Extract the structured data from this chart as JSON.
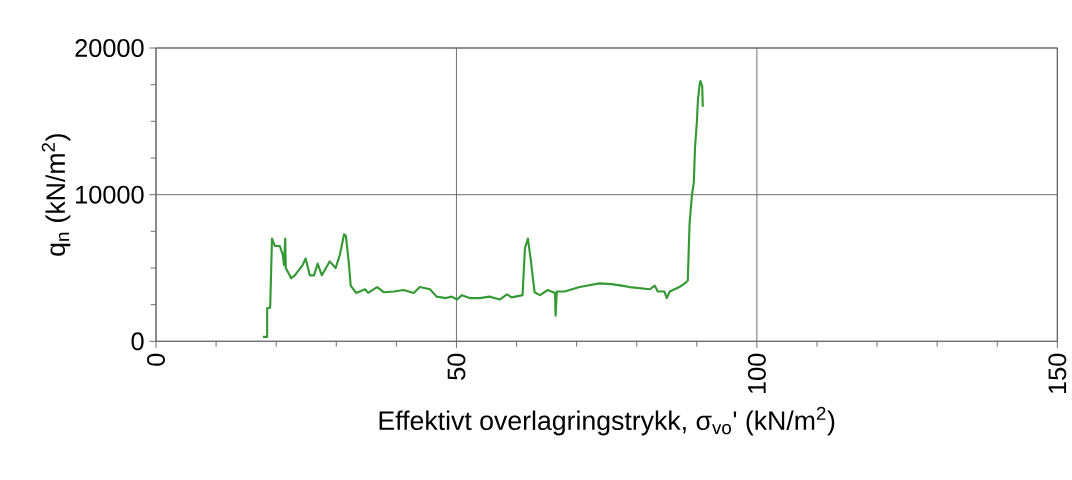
{
  "chart_data": {
    "type": "line",
    "xlabel": "Effektivt overlagringstrykk, σ$_{vo}$' (kN/m$^{2}$)",
    "ylabel": "q$_{n}$ (kN/m$^{2}$)",
    "xlim": [
      0,
      150
    ],
    "ylim": [
      0,
      20000
    ],
    "xticks": [
      0,
      {
        "value": 10,
        "label": null
      },
      {
        "value": 20,
        "label": null
      },
      {
        "value": 30,
        "label": null
      },
      {
        "value": 40,
        "label": null
      },
      50,
      {
        "value": 60,
        "label": null
      },
      {
        "value": 70,
        "label": null
      },
      {
        "value": 80,
        "label": null
      },
      {
        "value": 90,
        "label": null
      },
      100,
      {
        "value": 110,
        "label": null
      },
      {
        "value": 120,
        "label": null
      },
      {
        "value": 130,
        "label": null
      },
      {
        "value": 140,
        "label": null
      },
      150
    ],
    "yticks": [
      0,
      {
        "value": 2500,
        "label": null
      },
      {
        "value": 5000,
        "label": null
      },
      {
        "value": 7500,
        "label": null
      },
      10000,
      {
        "value": 12500,
        "label": null
      },
      {
        "value": 15000,
        "label": null
      },
      {
        "value": 17500,
        "label": null
      },
      20000
    ],
    "grid": true,
    "marker": "none",
    "line_style": "solid",
    "series": [
      {
        "color": "#339933",
        "x": [
          17.8,
          18.5,
          18.5,
          19.0,
          19.3,
          19.8,
          20.6,
          21.1,
          21.3,
          21.5,
          21.6,
          22.5,
          23.1,
          24.4,
          24.9,
          25.6,
          26.3,
          26.9,
          27.6,
          28.9,
          29.9,
          30.6,
          31.3,
          31.6,
          32.1,
          32.4,
          33.3,
          34.8,
          35.3,
          36.8,
          37.9,
          39.6,
          41.2,
          42.9,
          43.9,
          45.6,
          46.7,
          48.2,
          49.2,
          50.1,
          50.9,
          52.2,
          53.9,
          55.5,
          57.2,
          58.4,
          59.2,
          61.0,
          61.4,
          61.9,
          62.4,
          63.0,
          63.9,
          65.2,
          66.4,
          66.5,
          66.7,
          68.0,
          70.5,
          73.8,
          75.8,
          77.5,
          78.8,
          82.2,
          83.0,
          83.5,
          84.6,
          85.0,
          85.5,
          87.1,
          88.0,
          88.5,
          88.8,
          89.2,
          89.5,
          89.7,
          90.0,
          90.2,
          90.5,
          90.6,
          90.9,
          91.0
        ],
        "values": [
          300,
          300,
          2250,
          2300,
          7000,
          6500,
          6500,
          5900,
          5200,
          7000,
          5000,
          4300,
          4500,
          5200,
          5650,
          4500,
          4500,
          5300,
          4500,
          5450,
          5000,
          5900,
          7300,
          7200,
          5300,
          3800,
          3300,
          3550,
          3300,
          3700,
          3350,
          3400,
          3500,
          3300,
          3700,
          3550,
          3050,
          2950,
          3050,
          2850,
          3150,
          2950,
          2950,
          3050,
          2850,
          3200,
          3000,
          3150,
          6350,
          7000,
          5450,
          3350,
          3150,
          3500,
          3300,
          1750,
          3400,
          3400,
          3700,
          3950,
          3900,
          3800,
          3700,
          3550,
          3800,
          3400,
          3400,
          2950,
          3400,
          3700,
          3950,
          4150,
          8050,
          10000,
          10800,
          13200,
          14900,
          16500,
          17600,
          17750,
          17400,
          16000
        ]
      }
    ]
  }
}
